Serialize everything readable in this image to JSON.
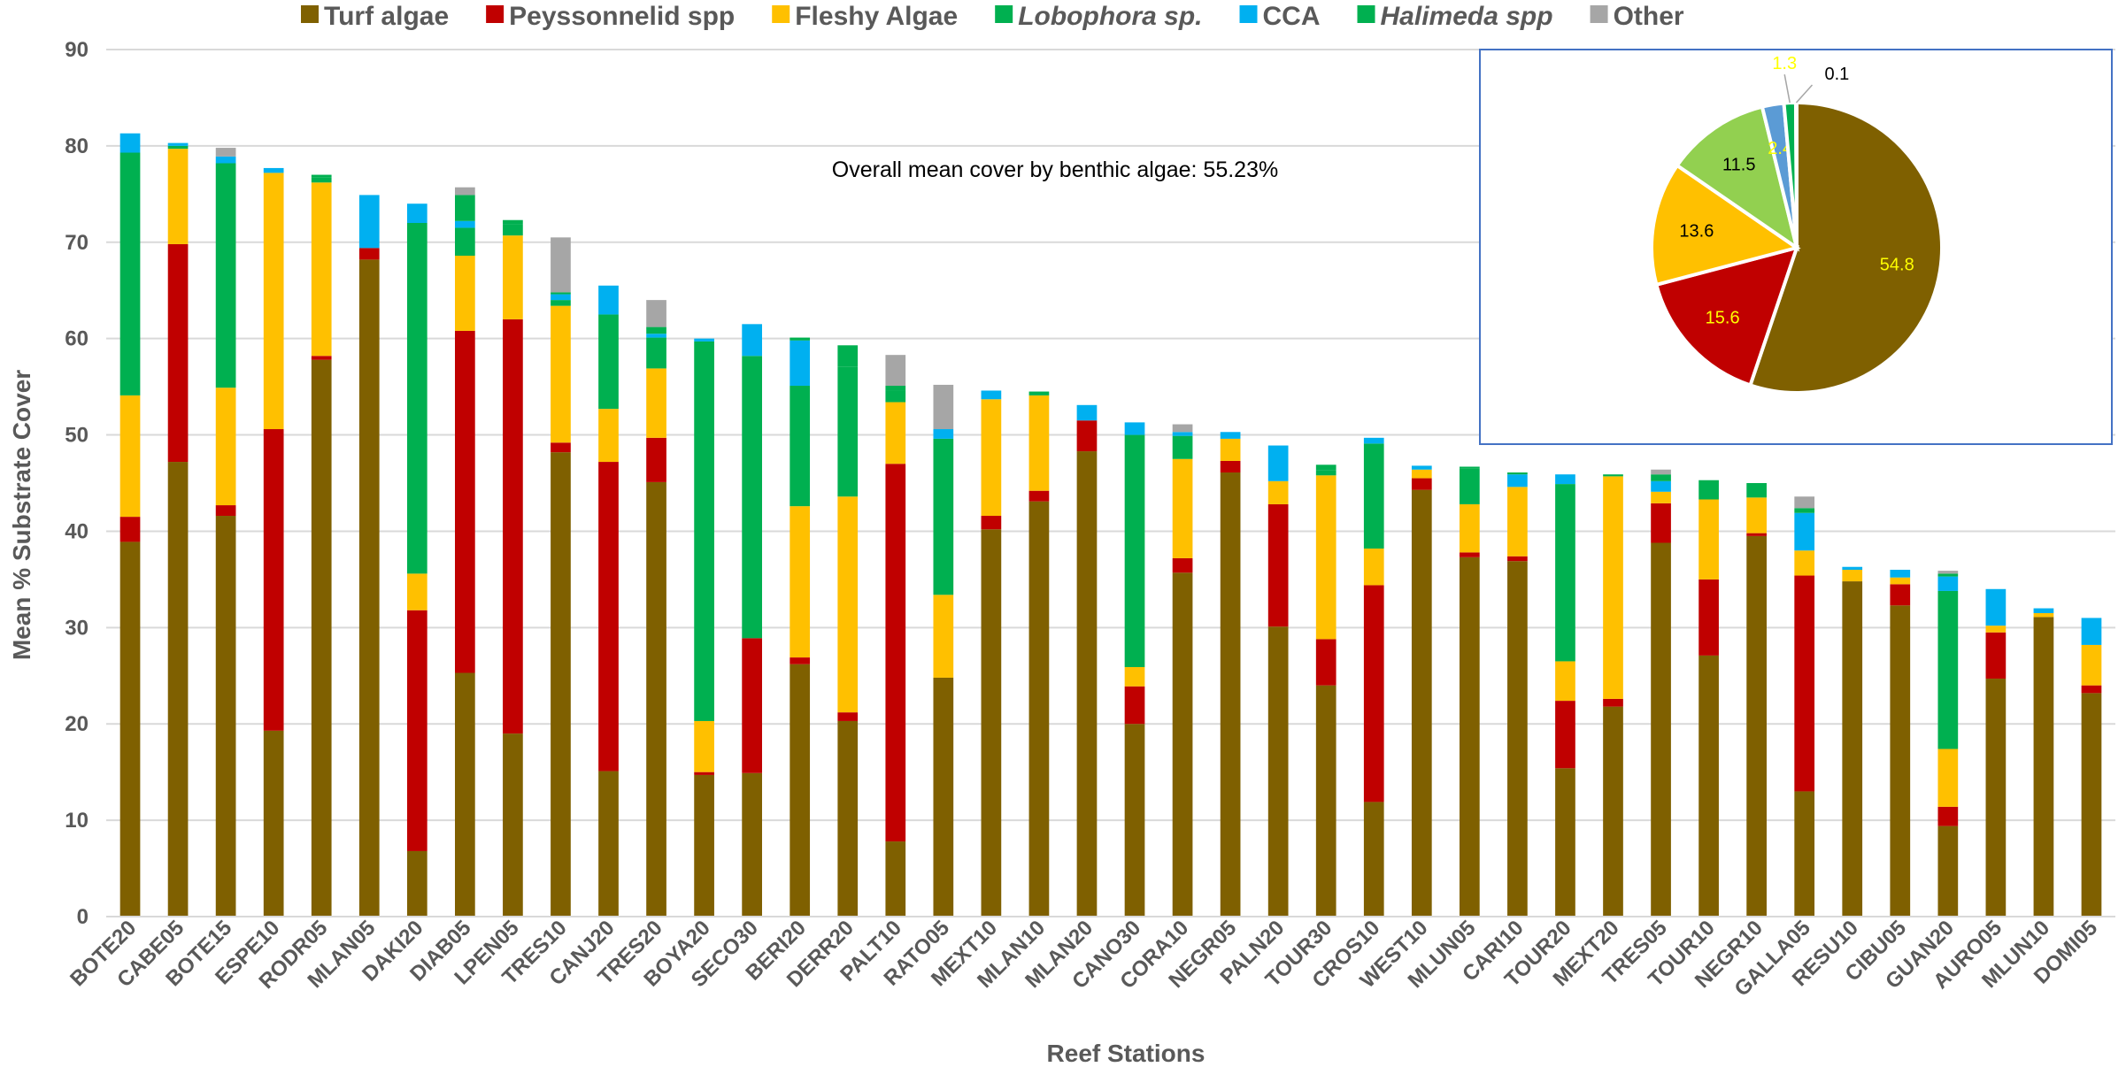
{
  "chart_data": [
    {
      "type": "bar",
      "stacked": true,
      "xlabel": "Reef Stations",
      "ylabel": "Mean % Substrate Cover",
      "ylim": [
        0,
        90
      ],
      "yticks": [
        0,
        10,
        20,
        30,
        40,
        50,
        60,
        70,
        80,
        90
      ],
      "grid": true,
      "legend_position": "top",
      "annotation": "Overall mean cover by benthic algae: 55.23%",
      "categories": [
        "BOTE20",
        "CABE05",
        "BOTE15",
        "ESPE10",
        "RODR05",
        "MLAN05",
        "DAKI20",
        "DIAB05",
        "LPEN05",
        "TRES10",
        "CANJ20",
        "TRES20",
        "BOYA20",
        "SECO30",
        "BERI20",
        "DERR20",
        "PALT10",
        "RATO05",
        "MEXT10",
        "MLAN10",
        "MLAN20",
        "CANO30",
        "CORA10",
        "NEGR05",
        "PALN20",
        "TOUR30",
        "CROS10",
        "WEST10",
        "MLUN05",
        "CARI10",
        "TOUR20",
        "MEXT20",
        "TRES05",
        "TOUR10",
        "NEGR10",
        "GALLA05",
        "RESU10",
        "CIBU05",
        "GUAN20",
        "AURO05",
        "MLUN10",
        "DOMI05"
      ],
      "series": [
        {
          "name": "Turf algae",
          "italic": false,
          "color": "#7F6000",
          "values": [
            38.9,
            47.2,
            41.6,
            19.3,
            57.8,
            68.2,
            6.8,
            25.3,
            19.0,
            48.2,
            15.1,
            45.1,
            14.7,
            14.9,
            26.2,
            20.3,
            7.8,
            24.8,
            40.2,
            43.1,
            48.3,
            20.0,
            35.7,
            46.1,
            30.1,
            24.0,
            11.9,
            44.3,
            37.3,
            36.9,
            15.4,
            21.8,
            38.8,
            27.1,
            39.5,
            13.0,
            34.8,
            32.3,
            9.4,
            24.7,
            31.1,
            23.2
          ]
        },
        {
          "name": "Peyssonnelid spp",
          "italic": false,
          "color": "#C00000",
          "values": [
            2.6,
            22.6,
            1.1,
            31.3,
            0.4,
            1.2,
            25.0,
            35.5,
            43.0,
            1.0,
            32.1,
            4.6,
            0.3,
            14.0,
            0.7,
            0.9,
            39.2,
            0,
            1.4,
            1.1,
            3.2,
            3.9,
            1.5,
            1.2,
            12.7,
            4.8,
            22.5,
            1.2,
            0.5,
            0.5,
            7.0,
            0.8,
            4.1,
            7.9,
            0.3,
            22.4,
            0,
            2.2,
            2.0,
            4.8,
            0,
            0.8
          ]
        },
        {
          "name": "Fleshy Algae",
          "italic": false,
          "color": "#FFC000",
          "values": [
            12.6,
            9.9,
            12.2,
            26.6,
            18.0,
            0,
            3.8,
            7.8,
            8.7,
            14.2,
            5.5,
            7.2,
            5.3,
            0,
            15.7,
            22.4,
            6.4,
            8.6,
            12.1,
            9.9,
            0,
            2.0,
            10.3,
            2.3,
            2.4,
            17.0,
            3.8,
            0.9,
            5.0,
            7.2,
            4.1,
            23.1,
            1.2,
            8.3,
            3.7,
            2.6,
            1.2,
            0.7,
            6.0,
            0.7,
            0.4,
            4.2
          ]
        },
        {
          "name": "Lobophora sp.",
          "italic": true,
          "color": "#00B050",
          "values": [
            25.2,
            0.3,
            23.3,
            0,
            0.5,
            0,
            36.4,
            2.9,
            1.2,
            0.6,
            9.8,
            3.2,
            39.4,
            29.3,
            12.5,
            13.5,
            1.2,
            16.2,
            0,
            0,
            0,
            24.1,
            2.4,
            0,
            0,
            0.5,
            10.9,
            0,
            3.7,
            0,
            18.4,
            0,
            0,
            0,
            0,
            0,
            0,
            0,
            16.4,
            0,
            0,
            0
          ]
        },
        {
          "name": "CCA",
          "italic": false,
          "color": "#00B0F0",
          "values": [
            2.0,
            0.3,
            0.7,
            0.5,
            0,
            5.5,
            2.0,
            0.7,
            0,
            0.6,
            3.0,
            0.4,
            0.3,
            3.3,
            4.7,
            0,
            0,
            1.0,
            0.9,
            0,
            1.6,
            1.3,
            0.4,
            0.7,
            3.7,
            0,
            0.6,
            0.4,
            0,
            1.3,
            1.0,
            0,
            1.1,
            0,
            0,
            3.9,
            0.3,
            0.8,
            1.5,
            3.8,
            0.5,
            2.8
          ]
        },
        {
          "name": "Halimeda spp",
          "italic": true,
          "color": "#00B050",
          "values": [
            0,
            0,
            0,
            0,
            0.3,
            0,
            0,
            2.7,
            0.4,
            0.2,
            0,
            0.7,
            0,
            0,
            0.3,
            2.2,
            0.5,
            0,
            0,
            0.4,
            0,
            0,
            0,
            0,
            0,
            0.6,
            0,
            0,
            0.2,
            0.2,
            0,
            0.2,
            0.7,
            2.0,
            1.5,
            0.5,
            0,
            0,
            0.3,
            0,
            0,
            0
          ]
        },
        {
          "name": "Other",
          "italic": false,
          "color": "#A6A6A6",
          "values": [
            0,
            0,
            0.9,
            0,
            0,
            0,
            0,
            0.8,
            0,
            5.7,
            0,
            2.8,
            0,
            0,
            0,
            0,
            3.2,
            4.6,
            0,
            0,
            0,
            0,
            0.8,
            0,
            0,
            0,
            0,
            0,
            0,
            0,
            0,
            0,
            0.5,
            0,
            0,
            1.2,
            0,
            0,
            0.3,
            0,
            0,
            0
          ]
        }
      ]
    },
    {
      "type": "pie",
      "legend": false,
      "slices": [
        {
          "value": 54.8,
          "label": "54.8",
          "color": "#7F6000",
          "label_color": "#FFFF00"
        },
        {
          "value": 15.6,
          "label": "15.6",
          "color": "#C00000",
          "label_color": "#FFFF00"
        },
        {
          "value": 13.6,
          "label": "13.6",
          "color": "#FFC000",
          "label_color": "#000000"
        },
        {
          "value": 11.5,
          "label": "11.5",
          "color": "#92D050",
          "label_color": "#000000"
        },
        {
          "value": 2.4,
          "label": "2.4",
          "color": "#5B9BD5",
          "label_color": "#FFFF00"
        },
        {
          "value": 1.3,
          "label": "1.3",
          "color": "#00B050",
          "label_color": "#FFFF00"
        },
        {
          "value": 0.1,
          "label": "0.1",
          "color": "#A6A6A6",
          "label_color": "#000000"
        }
      ]
    }
  ]
}
